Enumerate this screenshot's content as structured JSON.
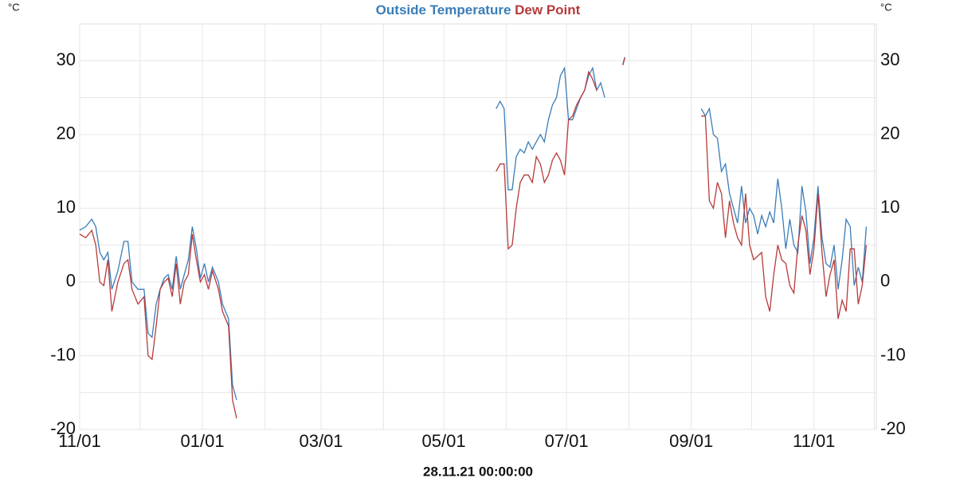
{
  "chart_data": {
    "type": "line",
    "unit": "°C",
    "footer": "28.11.21 00:00:00",
    "xlim": [
      "2020-11-01",
      "2021-12-02"
    ],
    "ylim": [
      -20,
      35
    ],
    "grid": true,
    "xticks": [
      {
        "value": "2020-11-01",
        "label": "11/01"
      },
      {
        "value": "2020-12-01",
        "label": null
      },
      {
        "value": "2021-01-01",
        "label": "01/01"
      },
      {
        "value": "2021-02-01",
        "label": null
      },
      {
        "value": "2021-03-01",
        "label": "03/01"
      },
      {
        "value": "2021-04-01",
        "label": null
      },
      {
        "value": "2021-05-01",
        "label": "05/01"
      },
      {
        "value": "2021-06-01",
        "label": null
      },
      {
        "value": "2021-07-01",
        "label": "07/01"
      },
      {
        "value": "2021-08-01",
        "label": null
      },
      {
        "value": "2021-09-01",
        "label": "09/01"
      },
      {
        "value": "2021-10-01",
        "label": null
      },
      {
        "value": "2021-11-01",
        "label": "11/01"
      },
      {
        "value": "2021-12-01",
        "label": null
      }
    ],
    "yticks": [
      -20,
      {
        "value": -15,
        "label": null
      },
      -10,
      {
        "value": -5,
        "label": null
      },
      0,
      {
        "value": 5,
        "label": null
      },
      10,
      {
        "value": 15,
        "label": null
      },
      20,
      {
        "value": 25,
        "label": null
      },
      30
    ],
    "x": [
      "2020-11-01",
      "2020-11-04",
      "2020-11-07",
      "2020-11-09",
      "2020-11-11",
      "2020-11-13",
      "2020-11-15",
      "2020-11-17",
      "2020-11-20",
      "2020-11-23",
      "2020-11-25",
      "2020-11-27",
      "2020-11-30",
      "2020-12-03",
      "2020-12-05",
      "2020-12-07",
      "2020-12-09",
      "2020-12-11",
      "2020-12-13",
      "2020-12-15",
      "2020-12-17",
      "2020-12-19",
      "2020-12-21",
      "2020-12-23",
      "2020-12-25",
      "2020-12-27",
      "2020-12-29",
      "2020-12-31",
      "2021-01-02",
      "2021-01-04",
      "2021-01-06",
      "2021-01-09",
      "2021-01-11",
      "2021-01-14",
      "2021-01-16",
      "2021-01-18",
      "2021-03-15",
      "2021-05-27",
      "2021-05-29",
      "2021-05-31",
      "2021-06-02",
      "2021-06-04",
      "2021-06-06",
      "2021-06-08",
      "2021-06-10",
      "2021-06-12",
      "2021-06-14",
      "2021-06-16",
      "2021-06-18",
      "2021-06-20",
      "2021-06-22",
      "2021-06-24",
      "2021-06-26",
      "2021-06-28",
      "2021-06-30",
      "2021-07-02",
      "2021-07-04",
      "2021-07-06",
      "2021-07-08",
      "2021-07-10",
      "2021-07-12",
      "2021-07-14",
      "2021-07-16",
      "2021-07-18",
      "2021-07-20",
      "2021-07-24",
      "2021-07-29",
      "2021-07-30",
      "2021-08-15",
      "2021-09-06",
      "2021-09-08",
      "2021-09-10",
      "2021-09-12",
      "2021-09-14",
      "2021-09-16",
      "2021-09-18",
      "2021-09-20",
      "2021-09-22",
      "2021-09-24",
      "2021-09-26",
      "2021-09-28",
      "2021-09-30",
      "2021-10-02",
      "2021-10-04",
      "2021-10-06",
      "2021-10-08",
      "2021-10-10",
      "2021-10-12",
      "2021-10-14",
      "2021-10-16",
      "2021-10-18",
      "2021-10-20",
      "2021-10-22",
      "2021-10-24",
      "2021-10-26",
      "2021-10-28",
      "2021-10-30",
      "2021-11-01",
      "2021-11-03",
      "2021-11-05",
      "2021-11-07",
      "2021-11-09",
      "2021-11-11",
      "2021-11-13",
      "2021-11-15",
      "2021-11-17",
      "2021-11-19",
      "2021-11-21",
      "2021-11-23",
      "2021-11-25",
      "2021-11-27"
    ],
    "series": [
      {
        "name": "Outside Temperature",
        "color": "#3a7db8",
        "values": [
          7,
          7.5,
          8.5,
          7.5,
          4,
          3,
          4,
          -1,
          1.5,
          5.5,
          5.5,
          0,
          -1,
          -1,
          -7,
          -7.5,
          -3,
          -1,
          0.5,
          1,
          -1,
          3.5,
          -1,
          1,
          3,
          7.5,
          4.5,
          0.5,
          2.5,
          0,
          2,
          0,
          -3,
          -5,
          -14,
          -16,
          null,
          23.5,
          24.5,
          23.5,
          12.5,
          12.5,
          17,
          18,
          17.5,
          19,
          18,
          19,
          20,
          19,
          22,
          24,
          25,
          28,
          29,
          22,
          22,
          23.5,
          25,
          26,
          28,
          29,
          26,
          27,
          25,
          null,
          29.5,
          30.5,
          null,
          23.5,
          22.5,
          23.5,
          20,
          19.5,
          15,
          16,
          12,
          10,
          8,
          13,
          8,
          10,
          9,
          6.5,
          9,
          7.5,
          9.5,
          8,
          14,
          10,
          4.5,
          8.5,
          5,
          4,
          13,
          9.5,
          2.5,
          6,
          13,
          6,
          2.5,
          2,
          5,
          -1,
          3,
          8.5,
          7.5,
          -0.5,
          2,
          0,
          7.5
        ]
      },
      {
        "name": "Dew Point",
        "color": "#b83a3a",
        "values": [
          6.5,
          6,
          7,
          5,
          0,
          -0.5,
          3,
          -4,
          0,
          2.5,
          3,
          -1,
          -3,
          -2,
          -10,
          -10.5,
          -6,
          -1,
          0,
          0.5,
          -2,
          2.5,
          -3,
          0,
          1,
          6.5,
          3,
          0,
          1,
          -1,
          1.5,
          -1,
          -4,
          -6,
          -16,
          -18.5,
          null,
          15,
          16,
          16,
          4.5,
          5,
          10,
          13.5,
          14.5,
          14.5,
          13.5,
          17,
          16,
          13.5,
          14.5,
          16.5,
          17.5,
          16.5,
          14.5,
          22,
          22.5,
          24,
          25,
          26,
          28.5,
          27.5,
          26,
          null,
          null,
          null,
          29.4,
          30.4,
          null,
          22.5,
          22.5,
          11,
          10,
          13.5,
          12,
          6,
          11,
          8,
          6,
          5,
          12,
          5,
          3,
          3.5,
          4,
          -2,
          -4,
          1,
          5,
          3,
          2.5,
          -0.5,
          -1.5,
          5,
          9,
          7,
          1,
          4.5,
          12,
          4,
          -2,
          1,
          3,
          -5,
          -2.5,
          -4,
          4.5,
          4.5,
          -3,
          -0.5,
          5
        ]
      }
    ]
  }
}
